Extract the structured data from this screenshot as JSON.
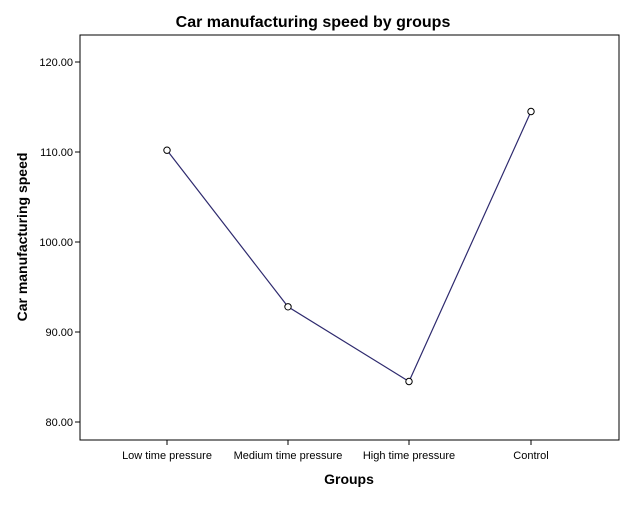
{
  "chart_data": {
    "type": "line",
    "title": "Car manufacturing speed by groups",
    "xlabel": "Groups",
    "ylabel": "Car manufacturing speed",
    "categories": [
      "Low time pressure",
      "Medium time pressure",
      "High time pressure",
      "Control"
    ],
    "series": [
      {
        "values": [
          110.2,
          92.8,
          84.5,
          114.5
        ]
      }
    ],
    "ylim": [
      78.0,
      123.0
    ],
    "yticks": [
      80.0,
      90.0,
      100.0,
      110.0,
      120.0
    ],
    "ytick_labels": [
      "80.00",
      "90.00",
      "100.00",
      "110.00",
      "120.00"
    ],
    "grid": false,
    "markers": "open-circle",
    "colors": {
      "line": "#2e2a6e",
      "marker": "#000000",
      "frame": "#000000"
    }
  }
}
